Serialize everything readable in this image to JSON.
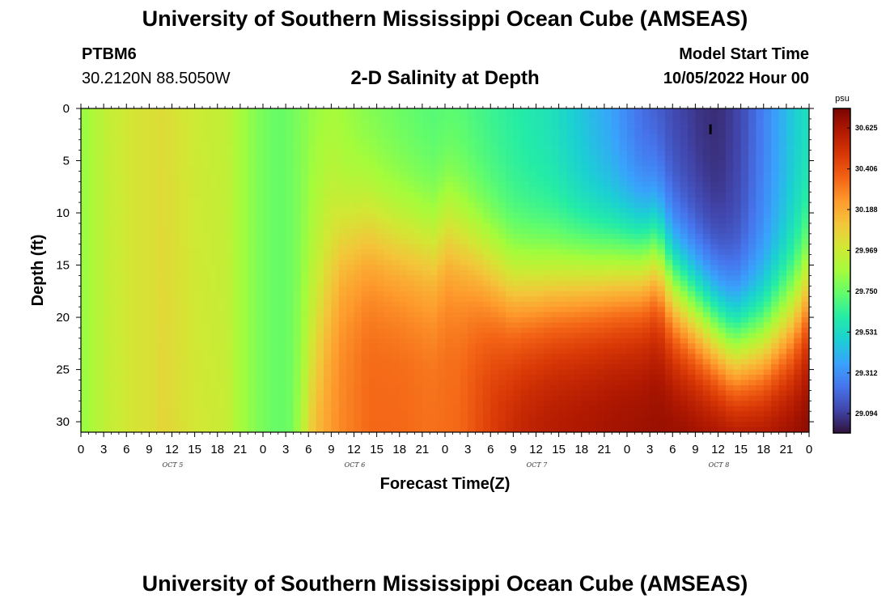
{
  "header": {
    "title": "University of Southern Mississippi Ocean Cube (AMSEAS)",
    "station_id": "PTBM6",
    "station_coords": "30.2120N  88.5050W",
    "plot_title": "2-D Salinity at Depth",
    "start_label": "Model Start Time",
    "start_value": "10/05/2022 Hour 00"
  },
  "footer": {
    "title": "University of Southern Mississippi Ocean Cube (AMSEAS)"
  },
  "chart_data": {
    "type": "heatmap",
    "title": "2-D Salinity at Depth",
    "xlabel": "Forecast Time(Z)",
    "ylabel": "Depth (ft)",
    "x_unit": "hours since 10/05/2022 00Z",
    "xlim": [
      0,
      96
    ],
    "ylim": [
      0,
      31
    ],
    "y_inverted": true,
    "x_tick_labels": [
      "0",
      "3",
      "6",
      "9",
      "12",
      "15",
      "18",
      "21",
      "0",
      "3",
      "6",
      "9",
      "12",
      "15",
      "18",
      "21",
      "0",
      "3",
      "6",
      "9",
      "12",
      "15",
      "18",
      "21",
      "0",
      "3",
      "6",
      "9",
      "12",
      "15",
      "18",
      "21",
      "0"
    ],
    "y_ticks": [
      0,
      5,
      10,
      15,
      20,
      25,
      30
    ],
    "day_labels": [
      {
        "label": "OCT 5",
        "hour": 12
      },
      {
        "label": "OCT 6",
        "hour": 36
      },
      {
        "label": "OCT 7",
        "hour": 60
      },
      {
        "label": "OCT 8",
        "hour": 84
      }
    ],
    "colorbar": {
      "unit": "psu",
      "min": 28.99,
      "max": 30.73,
      "tick_labels": [
        "30.625",
        "30.406",
        "30.188",
        "29.969",
        "29.750",
        "29.531",
        "29.312",
        "29.094"
      ],
      "tick_values": [
        30.625,
        30.406,
        30.188,
        29.969,
        29.75,
        29.531,
        29.312,
        29.094
      ],
      "colors": [
        "#30123b",
        "#4145ab",
        "#4675ed",
        "#39a2fc",
        "#1bcfd4",
        "#24eca6",
        "#61fc6c",
        "#a4fc3b",
        "#d1e834",
        "#f3c63a",
        "#fe9b2d",
        "#f36315",
        "#d93806",
        "#b11901",
        "#7a0402"
      ]
    },
    "marker": {
      "hour": 83,
      "depth": 2
    },
    "salinity_model": {
      "description": "Salinity field (psu) sampled hourly x 0.5 ft; values estimated from color scale",
      "surface_profile": [
        [
          0,
          29.83
        ],
        [
          3,
          29.93
        ],
        [
          7,
          30.0
        ],
        [
          11,
          30.03
        ],
        [
          15,
          29.97
        ],
        [
          19,
          29.94
        ],
        [
          23,
          29.8
        ],
        [
          26,
          29.74
        ],
        [
          30,
          29.8
        ],
        [
          34,
          29.85
        ],
        [
          38,
          29.78
        ],
        [
          42,
          29.74
        ],
        [
          46,
          29.7
        ],
        [
          50,
          29.7
        ],
        [
          54,
          29.65
        ],
        [
          58,
          29.6
        ],
        [
          62,
          29.55
        ],
        [
          66,
          29.45
        ],
        [
          70,
          29.35
        ],
        [
          74,
          29.2
        ],
        [
          78,
          29.12
        ],
        [
          82,
          29.06
        ],
        [
          84,
          29.05
        ],
        [
          87,
          29.12
        ],
        [
          91,
          29.32
        ],
        [
          94,
          29.48
        ],
        [
          96,
          29.55
        ]
      ],
      "interface_depth": [
        [
          0,
          50
        ],
        [
          28,
          50
        ],
        [
          30,
          22
        ],
        [
          32,
          14
        ],
        [
          34,
          12
        ],
        [
          38,
          11
        ],
        [
          41,
          12
        ],
        [
          47,
          13
        ],
        [
          48,
          11
        ],
        [
          50,
          12
        ],
        [
          54,
          15
        ],
        [
          57,
          17
        ],
        [
          60,
          17
        ],
        [
          64,
          16.5
        ],
        [
          68,
          16
        ],
        [
          71,
          15.5
        ],
        [
          74,
          15
        ],
        [
          76,
          14
        ],
        [
          78,
          17
        ],
        [
          82,
          20
        ],
        [
          86,
          23
        ],
        [
          90,
          22.5
        ],
        [
          94,
          20
        ],
        [
          96,
          17
        ]
      ],
      "deep_profile": [
        [
          28,
          30.0
        ],
        [
          30,
          30.1
        ],
        [
          34,
          30.22
        ],
        [
          38,
          30.3
        ],
        [
          42,
          30.3
        ],
        [
          46,
          30.28
        ],
        [
          50,
          30.3
        ],
        [
          54,
          30.42
        ],
        [
          58,
          30.52
        ],
        [
          62,
          30.56
        ],
        [
          66,
          30.58
        ],
        [
          70,
          30.6
        ],
        [
          76,
          30.62
        ],
        [
          82,
          30.65
        ],
        [
          86,
          30.7
        ],
        [
          92,
          30.66
        ],
        [
          96,
          30.65
        ]
      ]
    }
  }
}
